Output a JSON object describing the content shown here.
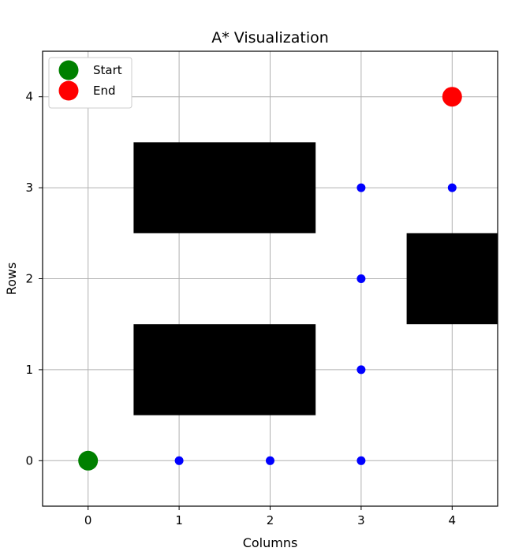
{
  "chart_data": {
    "type": "scatter",
    "title": "A* Visualization",
    "xlabel": "Columns",
    "ylabel": "Rows",
    "xlim": [
      -0.5,
      4.5
    ],
    "ylim": [
      -0.5,
      4.5
    ],
    "xticks": [
      0,
      1,
      2,
      3,
      4
    ],
    "yticks": [
      0,
      1,
      2,
      3,
      4
    ],
    "grid": true,
    "legend_position": "top-left",
    "obstacles": [
      {
        "x": [
          0.5,
          2.5
        ],
        "y": [
          2.5,
          3.5
        ]
      },
      {
        "x": [
          0.5,
          2.5
        ],
        "y": [
          0.5,
          1.5
        ]
      },
      {
        "x": [
          3.5,
          4.5
        ],
        "y": [
          1.5,
          2.5
        ]
      }
    ],
    "path": [
      {
        "x": 1,
        "y": 0
      },
      {
        "x": 2,
        "y": 0
      },
      {
        "x": 3,
        "y": 0
      },
      {
        "x": 3,
        "y": 1
      },
      {
        "x": 3,
        "y": 2
      },
      {
        "x": 3,
        "y": 3
      },
      {
        "x": 4,
        "y": 3
      }
    ],
    "series": [
      {
        "name": "Start",
        "color": "#008000",
        "points": [
          {
            "x": 0,
            "y": 0
          }
        ]
      },
      {
        "name": "End",
        "color": "#ff0000",
        "points": [
          {
            "x": 4,
            "y": 4
          }
        ]
      }
    ],
    "colors": {
      "path": "#0000ff",
      "obstacle": "#000000",
      "grid": "#b0b0b0"
    }
  }
}
